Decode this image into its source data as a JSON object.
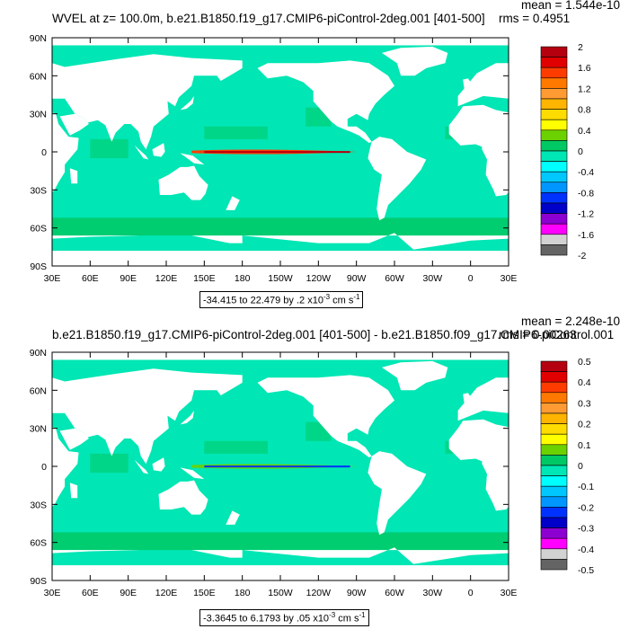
{
  "charts": [
    {
      "title": "WVEL at z= 100.0m, b.e21.B1850.f19_g17.CMIP6-piControl-2deg.001 [401-500]",
      "mean": "mean = 1.544e-10",
      "rms": "rms = 0.4951",
      "range_main": "-34.415 to 22.479 by .2 x10",
      "range_exp": "-3",
      "range_unit": " cm s",
      "range_unit_exp": "-1"
    },
    {
      "title": "b.e21.B1850.f19_g17.CMIP6-piControl-2deg.001 [401-500] - b.e21.B1850.f09_g17.CMIP6-piControl.001",
      "mean": "mean = 2.248e-10",
      "rms": "rms = 0.00263",
      "range_main": "-3.3645 to 6.1793 by .05 x10",
      "range_exp": "-3",
      "range_unit": " cm s",
      "range_unit_exp": "-1"
    }
  ],
  "chart_data": [
    {
      "type": "heatmap",
      "title": "WVEL at z= 100.0m, b.e21.B1850.f19_g17.CMIP6-piControl-2deg.001 [401-500]",
      "x_ticks": [
        "30E",
        "60E",
        "90E",
        "120E",
        "150E",
        "180",
        "150W",
        "120W",
        "90W",
        "60W",
        "30W",
        "0",
        "30E"
      ],
      "y_ticks": [
        "90N",
        "60N",
        "30N",
        "0",
        "30S",
        "60S",
        "90S"
      ],
      "colorbar_labels": [
        "2",
        "1.6",
        "1.2",
        "0.8",
        "0.4",
        "0",
        "-0.4",
        "-0.8",
        "-1.2",
        "-1.6",
        "-2"
      ],
      "colorbar_colors": [
        "#b4000f",
        "#e10000",
        "#ff3c00",
        "#ff7800",
        "#ff9b32",
        "#ffb400",
        "#ffdc00",
        "#ffff00",
        "#6cd100",
        "#00c864",
        "#00e6b4",
        "#00ffff",
        "#00c8ff",
        "#0096ff",
        "#0032ff",
        "#0000c8",
        "#8c00d2",
        "#ff00ff",
        "#d2d2d2",
        "#646464"
      ],
      "mean": 1.544e-10,
      "rms": 0.4951
    },
    {
      "type": "heatmap",
      "title": "b.e21.B1850.f19_g17.CMIP6-piControl-2deg.001 [401-500] - b.e21.B1850.f09_g17.CMIP6-piControl.001",
      "x_ticks": [
        "30E",
        "60E",
        "90E",
        "120E",
        "150E",
        "180",
        "150W",
        "120W",
        "90W",
        "60W",
        "30W",
        "0",
        "30E"
      ],
      "y_ticks": [
        "90N",
        "60N",
        "30N",
        "0",
        "30S",
        "60S",
        "90S"
      ],
      "colorbar_labels": [
        "0.5",
        "0.4",
        "0.3",
        "0.2",
        "0.1",
        "0",
        "-0.1",
        "-0.2",
        "-0.3",
        "-0.4",
        "-0.5"
      ],
      "colorbar_colors": [
        "#b4000f",
        "#e10000",
        "#ff3c00",
        "#ff7800",
        "#ff9b32",
        "#ffb400",
        "#ffdc00",
        "#ffff00",
        "#6cd100",
        "#00c864",
        "#00e6b4",
        "#00ffff",
        "#00c8ff",
        "#0096ff",
        "#0032ff",
        "#0000c8",
        "#8c00d2",
        "#ff00ff",
        "#d2d2d2",
        "#646464"
      ],
      "mean": 2.248e-10,
      "rms": 0.00263
    }
  ]
}
